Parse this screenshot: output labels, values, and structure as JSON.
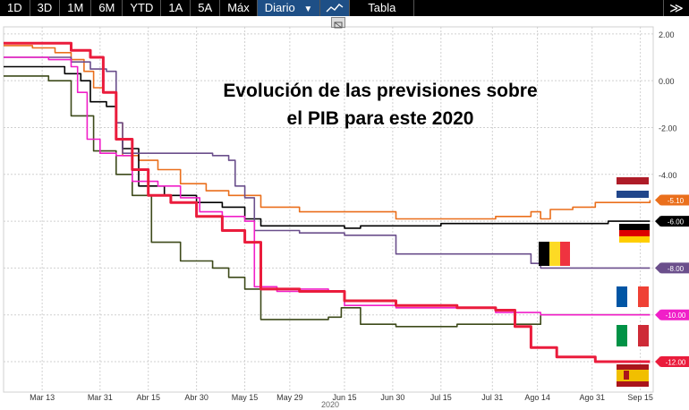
{
  "toolbar": {
    "ranges": [
      "1D",
      "3D",
      "1M",
      "6M",
      "YTD",
      "1A",
      "5A",
      "Máx"
    ],
    "period_label": "Diario",
    "period_caret": "▼",
    "table_label": "Tabla",
    "expand_glyph": "≫",
    "line_icon": "line-chart-icon",
    "collapse_icon": "collapse-icon"
  },
  "colors": {
    "netherlands": "#ea6f1c",
    "germany": "#000000",
    "belgium": "#6b4f8c",
    "france": "#f01fc8",
    "italy": "#3d4a1a",
    "spain": "#ea1c3c"
  },
  "chart_data": {
    "type": "line",
    "title": "Evolución de las previsiones sobre el PIB para este 2020",
    "title_lines": [
      "Evolución de las previsiones sobre",
      "el PIB para este 2020"
    ],
    "xlabel": "",
    "ylabel": "",
    "year_label": "2020",
    "x_ticks": [
      "Mar 13",
      "Mar 31",
      "Abr 15",
      "Abr 30",
      "May 15",
      "May 29",
      "Jun 15",
      "Jun 30",
      "Jul 15",
      "Jul 31",
      "Ago 14",
      "Ago 31",
      "Sep 15"
    ],
    "x_tick_dates": [
      "2020-03-13",
      "2020-03-31",
      "2020-04-15",
      "2020-04-30",
      "2020-05-15",
      "2020-05-29",
      "2020-06-15",
      "2020-06-30",
      "2020-07-15",
      "2020-07-31",
      "2020-08-14",
      "2020-08-31",
      "2020-09-15"
    ],
    "y_ticks": [
      "2.00",
      "0.00",
      "-2.00",
      "-4.00",
      "-6.00",
      "-8.00",
      "-10.00",
      "-12.00"
    ],
    "y_tick_values": [
      2,
      0,
      -2,
      -4,
      -6,
      -8,
      -10,
      -12
    ],
    "ylim": [
      -13.3,
      2.3
    ],
    "xlim": [
      "2020-03-01",
      "2020-09-19"
    ],
    "grid": true,
    "flags": [
      "netherlands-flag",
      "germany-flag",
      "belgium-flag",
      "france-flag",
      "italy-flag",
      "spain-flag"
    ],
    "end_labels": [
      {
        "text": "-5.10",
        "series": "netherlands"
      },
      {
        "text": "-6.00",
        "series": "germany"
      },
      {
        "text": "-8.00",
        "series": "belgium"
      },
      {
        "text": "-10.00",
        "series": "france"
      },
      {
        "text": "-12.00",
        "series": "spain"
      }
    ],
    "series": [
      {
        "key": "netherlands",
        "points": [
          [
            "2020-03-01",
            1.5
          ],
          [
            "2020-03-10",
            1.4
          ],
          [
            "2020-03-17",
            1.2
          ],
          [
            "2020-03-22",
            0.9
          ],
          [
            "2020-03-26",
            0.4
          ],
          [
            "2020-03-29",
            -0.3
          ],
          [
            "2020-04-01",
            -0.5
          ],
          [
            "2020-04-05",
            -1.8
          ],
          [
            "2020-04-07",
            -3.2
          ],
          [
            "2020-04-12",
            -3.4
          ],
          [
            "2020-04-18",
            -3.8
          ],
          [
            "2020-04-25",
            -4.4
          ],
          [
            "2020-05-03",
            -4.7
          ],
          [
            "2020-05-10",
            -4.9
          ],
          [
            "2020-05-20",
            -5.4
          ],
          [
            "2020-06-01",
            -5.6
          ],
          [
            "2020-06-20",
            -5.6
          ],
          [
            "2020-07-01",
            -5.9
          ],
          [
            "2020-07-20",
            -5.9
          ],
          [
            "2020-08-01",
            -5.8
          ],
          [
            "2020-08-12",
            -5.6
          ],
          [
            "2020-08-15",
            -5.9
          ],
          [
            "2020-08-18",
            -5.5
          ],
          [
            "2020-08-25",
            -5.4
          ],
          [
            "2020-09-01",
            -5.2
          ],
          [
            "2020-09-18",
            -5.1
          ]
        ]
      },
      {
        "key": "germany",
        "points": [
          [
            "2020-03-01",
            0.6
          ],
          [
            "2020-03-15",
            0.6
          ],
          [
            "2020-03-20",
            0.3
          ],
          [
            "2020-03-25",
            0.0
          ],
          [
            "2020-03-28",
            -0.9
          ],
          [
            "2020-04-02",
            -1.1
          ],
          [
            "2020-04-05",
            -2.5
          ],
          [
            "2020-04-07",
            -2.9
          ],
          [
            "2020-04-12",
            -4.5
          ],
          [
            "2020-04-20",
            -4.9
          ],
          [
            "2020-04-30",
            -5.2
          ],
          [
            "2020-05-08",
            -5.4
          ],
          [
            "2020-05-15",
            -5.9
          ],
          [
            "2020-05-20",
            -6.2
          ],
          [
            "2020-06-01",
            -6.2
          ],
          [
            "2020-06-15",
            -6.3
          ],
          [
            "2020-06-20",
            -6.2
          ],
          [
            "2020-07-15",
            -6.1
          ],
          [
            "2020-08-01",
            -6.1
          ],
          [
            "2020-08-20",
            -6.1
          ],
          [
            "2020-09-05",
            -6.0
          ],
          [
            "2020-09-18",
            -6.0
          ]
        ]
      },
      {
        "key": "belgium",
        "points": [
          [
            "2020-03-01",
            1.0
          ],
          [
            "2020-03-15",
            1.0
          ],
          [
            "2020-03-22",
            0.8
          ],
          [
            "2020-03-28",
            0.5
          ],
          [
            "2020-04-02",
            0.4
          ],
          [
            "2020-04-05",
            -1.8
          ],
          [
            "2020-04-07",
            -3.1
          ],
          [
            "2020-04-20",
            -3.1
          ],
          [
            "2020-05-05",
            -3.2
          ],
          [
            "2020-05-10",
            -3.4
          ],
          [
            "2020-05-12",
            -4.5
          ],
          [
            "2020-05-15",
            -5.0
          ],
          [
            "2020-05-18",
            -6.4
          ],
          [
            "2020-06-01",
            -6.5
          ],
          [
            "2020-06-15",
            -6.6
          ],
          [
            "2020-07-01",
            -7.4
          ],
          [
            "2020-07-20",
            -7.4
          ],
          [
            "2020-08-05",
            -7.4
          ],
          [
            "2020-08-12",
            -7.8
          ],
          [
            "2020-08-15",
            -8.0
          ],
          [
            "2020-09-18",
            -8.0
          ]
        ]
      },
      {
        "key": "france",
        "points": [
          [
            "2020-03-01",
            1.0
          ],
          [
            "2020-03-15",
            0.9
          ],
          [
            "2020-03-22",
            0.6
          ],
          [
            "2020-03-24",
            -0.5
          ],
          [
            "2020-03-27",
            -2.5
          ],
          [
            "2020-03-31",
            -3.1
          ],
          [
            "2020-04-05",
            -3.2
          ],
          [
            "2020-04-10",
            -4.3
          ],
          [
            "2020-04-18",
            -4.5
          ],
          [
            "2020-04-25",
            -5.0
          ],
          [
            "2020-05-01",
            -5.6
          ],
          [
            "2020-05-08",
            -5.8
          ],
          [
            "2020-05-15",
            -6.0
          ],
          [
            "2020-05-18",
            -8.8
          ],
          [
            "2020-05-25",
            -9.0
          ],
          [
            "2020-06-01",
            -8.9
          ],
          [
            "2020-06-10",
            -9.0
          ],
          [
            "2020-06-15",
            -9.6
          ],
          [
            "2020-07-01",
            -9.7
          ],
          [
            "2020-07-20",
            -9.7
          ],
          [
            "2020-08-01",
            -9.9
          ],
          [
            "2020-08-15",
            -10.0
          ],
          [
            "2020-09-18",
            -10.0
          ]
        ]
      },
      {
        "key": "italy",
        "points": [
          [
            "2020-03-01",
            0.2
          ],
          [
            "2020-03-10",
            0.2
          ],
          [
            "2020-03-15",
            0.0
          ],
          [
            "2020-03-22",
            -1.5
          ],
          [
            "2020-03-29",
            -3.0
          ],
          [
            "2020-04-05",
            -4.0
          ],
          [
            "2020-04-10",
            -4.9
          ],
          [
            "2020-04-16",
            -6.9
          ],
          [
            "2020-04-25",
            -7.7
          ],
          [
            "2020-05-05",
            -8.0
          ],
          [
            "2020-05-10",
            -8.4
          ],
          [
            "2020-05-15",
            -8.9
          ],
          [
            "2020-05-20",
            -10.2
          ],
          [
            "2020-06-01",
            -10.2
          ],
          [
            "2020-06-10",
            -10.1
          ],
          [
            "2020-06-14",
            -9.7
          ],
          [
            "2020-06-20",
            -10.4
          ],
          [
            "2020-07-01",
            -10.5
          ],
          [
            "2020-07-20",
            -10.4
          ],
          [
            "2020-08-01",
            -10.4
          ],
          [
            "2020-08-10",
            -10.4
          ],
          [
            "2020-08-15",
            -10.0
          ],
          [
            "2020-08-25",
            -10.0
          ],
          [
            "2020-09-18",
            -10.0
          ]
        ]
      },
      {
        "key": "spain",
        "points": [
          [
            "2020-03-01",
            1.6
          ],
          [
            "2020-03-15",
            1.6
          ],
          [
            "2020-03-22",
            1.3
          ],
          [
            "2020-03-28",
            1.0
          ],
          [
            "2020-04-01",
            -0.5
          ],
          [
            "2020-04-05",
            -2.5
          ],
          [
            "2020-04-10",
            -3.8
          ],
          [
            "2020-04-15",
            -4.9
          ],
          [
            "2020-04-22",
            -5.2
          ],
          [
            "2020-04-30",
            -5.8
          ],
          [
            "2020-05-08",
            -6.4
          ],
          [
            "2020-05-15",
            -6.9
          ],
          [
            "2020-05-20",
            -8.9
          ],
          [
            "2020-06-01",
            -9.0
          ],
          [
            "2020-06-15",
            -9.4
          ],
          [
            "2020-07-01",
            -9.6
          ],
          [
            "2020-07-20",
            -9.7
          ],
          [
            "2020-08-01",
            -9.8
          ],
          [
            "2020-08-07",
            -10.5
          ],
          [
            "2020-08-12",
            -11.4
          ],
          [
            "2020-08-20",
            -11.8
          ],
          [
            "2020-09-01",
            -12.0
          ],
          [
            "2020-09-18",
            -12.0
          ]
        ]
      }
    ]
  }
}
